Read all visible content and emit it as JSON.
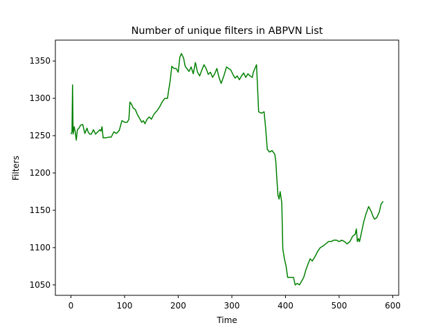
{
  "chart_data": {
    "type": "line",
    "title": "Number of unique filters in ABPVN List",
    "xlabel": "Time",
    "ylabel": "Filters",
    "xlim": [
      -29,
      611
    ],
    "ylim": [
      1036,
      1378
    ],
    "x_ticks": [
      0,
      100,
      200,
      300,
      400,
      500,
      600
    ],
    "y_ticks": [
      1050,
      1100,
      1150,
      1200,
      1250,
      1300,
      1350
    ],
    "grid": false,
    "line_color": "#008000",
    "series": [
      {
        "x": [
          0,
          2,
          3,
          4,
          6,
          8,
          10,
          12,
          15,
          18,
          22,
          26,
          30,
          32,
          35,
          38,
          42,
          46,
          50,
          54,
          56,
          58,
          60,
          62,
          65,
          70,
          75,
          80,
          85,
          90,
          92,
          95,
          98,
          100,
          105,
          108,
          110,
          113,
          116,
          120,
          124,
          128,
          132,
          135,
          138,
          142,
          146,
          150,
          155,
          160,
          165,
          170,
          175,
          180,
          182,
          185,
          188,
          192,
          196,
          200,
          203,
          206,
          210,
          213,
          216,
          220,
          224,
          228,
          232,
          236,
          240,
          244,
          248,
          252,
          256,
          260,
          264,
          268,
          272,
          276,
          280,
          285,
          290,
          294,
          298,
          302,
          306,
          310,
          314,
          318,
          322,
          326,
          330,
          334,
          338,
          340,
          343,
          346,
          350,
          355,
          360,
          363,
          366,
          370,
          375,
          380,
          382,
          384,
          386,
          388,
          390,
          393,
          395,
          398,
          401,
          404,
          408,
          412,
          415,
          418,
          422,
          426,
          430,
          434,
          438,
          442,
          446,
          450,
          455,
          460,
          465,
          470,
          475,
          480,
          485,
          490,
          495,
          500,
          505,
          510,
          515,
          520,
          525,
          530,
          532,
          534,
          536,
          538,
          540,
          543,
          546,
          550,
          555,
          560,
          563,
          566,
          570,
          575,
          578,
          580,
          582
        ],
        "y": [
          1252,
          1255,
          1318,
          1252,
          1262,
          1255,
          1244,
          1258,
          1260,
          1264,
          1265,
          1253,
          1260,
          1255,
          1252,
          1252,
          1258,
          1252,
          1255,
          1258,
          1256,
          1262,
          1247,
          1247,
          1247,
          1248,
          1248,
          1255,
          1253,
          1257,
          1262,
          1270,
          1269,
          1268,
          1268,
          1272,
          1295,
          1292,
          1287,
          1285,
          1278,
          1273,
          1268,
          1270,
          1266,
          1272,
          1275,
          1272,
          1279,
          1283,
          1288,
          1295,
          1300,
          1300,
          1310,
          1323,
          1343,
          1340,
          1340,
          1335,
          1355,
          1360,
          1354,
          1343,
          1340,
          1336,
          1342,
          1333,
          1348,
          1335,
          1330,
          1338,
          1345,
          1340,
          1332,
          1335,
          1328,
          1333,
          1340,
          1328,
          1320,
          1330,
          1342,
          1340,
          1338,
          1332,
          1327,
          1330,
          1325,
          1330,
          1334,
          1328,
          1333,
          1330,
          1328,
          1335,
          1340,
          1345,
          1282,
          1280,
          1282,
          1260,
          1232,
          1228,
          1230,
          1225,
          1215,
          1190,
          1170,
          1165,
          1175,
          1160,
          1098,
          1085,
          1075,
          1060,
          1060,
          1060,
          1060,
          1050,
          1052,
          1050,
          1055,
          1060,
          1070,
          1078,
          1085,
          1082,
          1088,
          1095,
          1100,
          1102,
          1105,
          1108,
          1108,
          1110,
          1110,
          1108,
          1110,
          1108,
          1105,
          1108,
          1115,
          1118,
          1125,
          1108,
          1112,
          1108,
          1115,
          1125,
          1135,
          1145,
          1155,
          1148,
          1142,
          1138,
          1140,
          1148,
          1158,
          1160,
          1162
        ]
      }
    ]
  }
}
